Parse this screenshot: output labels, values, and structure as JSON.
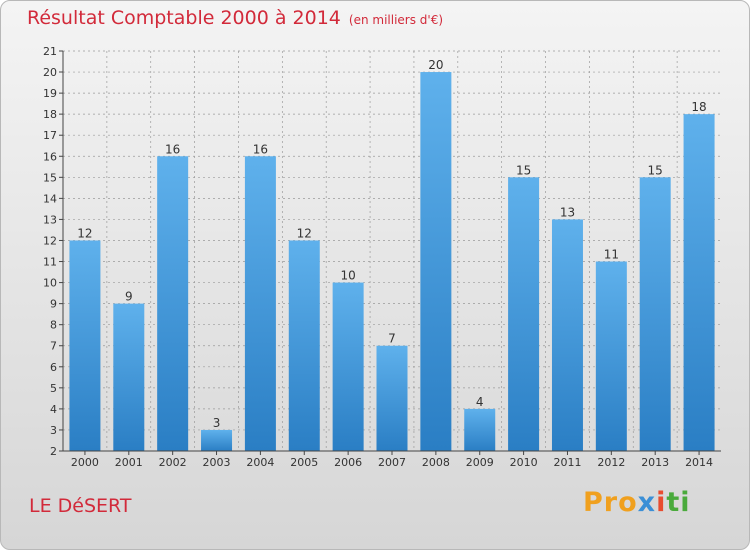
{
  "title": "Résultat Comptable 2000 à 2014",
  "subtitle": "(en milliers d'€)",
  "commune": "LE DéSERT",
  "logo": {
    "p1": "Pro",
    "p2": "x",
    "p3": "i",
    "p4": "ti"
  },
  "colors": {
    "bar": "#3e94d6",
    "title": "#d22a3a",
    "axis": "#444444",
    "grid": "#9a9a9a"
  },
  "chart_data": {
    "type": "bar",
    "title": "Résultat Comptable 2000 à 2014",
    "subtitle": "(en milliers d'€)",
    "xlabel": "",
    "ylabel": "",
    "categories": [
      "2000",
      "2001",
      "2002",
      "2003",
      "2004",
      "2005",
      "2006",
      "2007",
      "2008",
      "2009",
      "2010",
      "2011",
      "2012",
      "2013",
      "2014"
    ],
    "values": [
      12,
      9,
      16,
      3,
      16,
      12,
      10,
      7,
      20,
      4,
      15,
      13,
      11,
      15,
      18
    ],
    "ylim": [
      2,
      21
    ],
    "yticks": [
      2,
      3,
      4,
      5,
      6,
      7,
      8,
      9,
      10,
      11,
      12,
      13,
      14,
      15,
      16,
      17,
      18,
      19,
      20,
      21
    ],
    "data_labels": true,
    "grid": true
  }
}
